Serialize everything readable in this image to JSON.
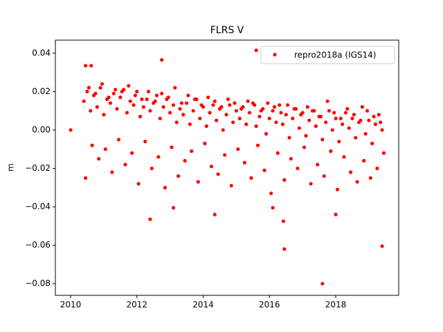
{
  "chart_data": {
    "type": "scatter",
    "title": "FLRS V",
    "y_label": "m",
    "xlim": [
      2009.54,
      2019.9
    ],
    "ylim": [
      -0.0861,
      0.0468
    ],
    "xticks": [
      2010,
      2012,
      2014,
      2016,
      2018
    ],
    "yticks": [
      {
        "value": -0.08,
        "label": "−0.08"
      },
      {
        "value": -0.06,
        "label": "−0.06"
      },
      {
        "value": -0.04,
        "label": "−0.04"
      },
      {
        "value": -0.02,
        "label": "−0.02"
      },
      {
        "value": 0,
        "label": "0.00"
      },
      {
        "value": 0.02,
        "label": "0.02"
      },
      {
        "value": 0.04,
        "label": "0.04"
      }
    ],
    "legend": "upper right",
    "x": [
      2010.4,
      2010.5,
      2010.6,
      2010.7,
      2010.8,
      2010.9,
      2011.0,
      2011.1,
      2011.2,
      2011.3,
      2011.4,
      2011.5,
      2011.6,
      2011.7,
      2011.8,
      2011.9,
      2012.0,
      2012.1,
      2012.2,
      2012.3,
      2012.4,
      2012.5,
      2012.6,
      2012.7,
      2012.8,
      2012.9,
      2013.0,
      2013.1,
      2013.2,
      2013.3,
      2013.4,
      2013.5,
      2013.6,
      2013.7,
      2013.8,
      2013.9,
      2014.0,
      2014.1,
      2014.2,
      2014.3,
      2014.4,
      2014.5,
      2014.6,
      2014.7,
      2014.8,
      2014.9,
      2015.0,
      2015.1,
      2015.2,
      2015.3,
      2015.4,
      2015.5,
      2015.6,
      2015.7,
      2015.8,
      2015.9,
      2016.0,
      2016.1,
      2016.2,
      2016.3,
      2016.4,
      2016.5,
      2016.6,
      2016.7,
      2016.8,
      2016.9,
      2017.0,
      2017.1,
      2017.2,
      2017.3,
      2017.4,
      2017.5,
      2017.6,
      2017.7,
      2017.8,
      2017.9,
      2018.0,
      2018.1,
      2018.2,
      2018.3,
      2018.4,
      2018.5,
      2018.6,
      2018.7,
      2018.8,
      2018.9,
      2019.0,
      2019.1,
      2019.2,
      2019.3,
      2019.4,
      2010.45,
      2010.65,
      2010.85,
      2011.05,
      2011.25,
      2011.45,
      2011.65,
      2011.85,
      2012.05,
      2012.25,
      2012.45,
      2012.65,
      2012.85,
      2013.05,
      2013.25,
      2013.45,
      2013.65,
      2013.85,
      2014.05,
      2014.25,
      2014.45,
      2014.65,
      2014.85,
      2015.05,
      2015.25,
      2015.45,
      2015.65,
      2015.85,
      2016.05,
      2016.25,
      2016.45,
      2016.65,
      2016.85,
      2017.05,
      2017.25,
      2017.45,
      2017.65,
      2017.85,
      2018.05,
      2018.25,
      2018.45,
      2018.65,
      2018.85,
      2019.05,
      2019.25,
      2019.45,
      2010.55,
      2010.75,
      2010.95,
      2011.15,
      2011.35,
      2011.55,
      2011.75,
      2011.95,
      2012.15,
      2012.35,
      2012.55,
      2012.75,
      2012.95,
      2013.15,
      2013.35,
      2013.55,
      2013.75,
      2013.95,
      2014.15,
      2014.35,
      2014.55,
      2014.75,
      2014.95,
      2015.15,
      2015.35,
      2015.55,
      2015.75,
      2015.95,
      2016.15,
      2016.35,
      2016.55,
      2016.75,
      2016.95,
      2017.15,
      2017.35,
      2017.55,
      2017.75,
      2017.95,
      2018.15,
      2018.35,
      2018.55,
      2018.75,
      2018.95,
      2019.15,
      2019.35,
      2010.0,
      2010.45,
      2010.62,
      2012.75,
      2015.6,
      2017.6,
      2016.45,
      2016.42,
      2019.4,
      2012.4,
      2014.35,
      2018.0,
      2013.1,
      2016.1
    ],
    "series": [
      {
        "name": "repro2018a (IGS14)",
        "color": "#ff0000",
        "values": [
          0.015,
          0.02,
          0.01,
          0.018,
          0.012,
          0.022,
          0.008,
          0.016,
          0.014,
          0.019,
          0.011,
          0.017,
          0.021,
          0.009,
          0.015,
          0.013,
          0.02,
          0.007,
          0.012,
          0.016,
          0.01,
          0.014,
          0.018,
          0.006,
          0.012,
          0.016,
          0.009,
          0.013,
          0.004,
          0.011,
          0.008,
          0.014,
          0.003,
          0.01,
          0.016,
          0.006,
          0.012,
          0.002,
          0.009,
          0.013,
          0.005,
          0.011,
          0.0,
          0.008,
          0.013,
          0.004,
          0.01,
          0.006,
          0.012,
          0.003,
          0.009,
          0.014,
          0.002,
          0.007,
          0.011,
          -0.002,
          0.006,
          0.01,
          0.004,
          0.013,
          0.003,
          0.008,
          -0.004,
          0.006,
          0.011,
          0.001,
          0.009,
          -0.003,
          0.005,
          0.01,
          0.002,
          0.007,
          -0.005,
          0.004,
          0.01,
          0.0,
          0.006,
          -0.006,
          0.003,
          0.009,
          0.001,
          0.006,
          -0.004,
          0.004,
          0.012,
          -0.002,
          0.005,
          -0.007,
          0.003,
          0.008,
          0.0,
          -0.025,
          -0.008,
          -0.015,
          -0.01,
          -0.022,
          -0.005,
          -0.018,
          -0.012,
          -0.028,
          -0.006,
          -0.02,
          -0.014,
          -0.03,
          -0.009,
          -0.024,
          -0.016,
          -0.011,
          -0.027,
          -0.007,
          -0.019,
          -0.023,
          -0.013,
          -0.029,
          -0.01,
          -0.017,
          -0.025,
          -0.008,
          -0.021,
          -0.033,
          -0.012,
          -0.026,
          -0.015,
          -0.02,
          -0.009,
          -0.028,
          -0.018,
          -0.024,
          -0.011,
          -0.031,
          -0.014,
          -0.022,
          -0.027,
          -0.016,
          -0.025,
          -0.02,
          -0.012,
          0.022,
          0.019,
          0.024,
          0.017,
          0.021,
          0.02,
          0.023,
          0.018,
          0.016,
          0.02,
          0.015,
          0.019,
          0.017,
          0.022,
          0.014,
          0.018,
          0.016,
          0.013,
          0.017,
          0.015,
          0.012,
          0.016,
          0.014,
          0.011,
          0.015,
          0.013,
          0.01,
          0.014,
          0.012,
          0.009,
          0.013,
          0.011,
          0.008,
          0.012,
          0.01,
          0.007,
          0.015,
          0.009,
          0.006,
          0.011,
          0.008,
          0.005,
          0.01,
          0.007,
          0.004,
          0.0,
          0.0335,
          0.0335,
          0.0365,
          0.0415,
          -0.08,
          -0.062,
          -0.0475,
          -0.0605,
          -0.0465,
          -0.044,
          -0.044,
          -0.0405,
          -0.0405
        ]
      }
    ]
  }
}
